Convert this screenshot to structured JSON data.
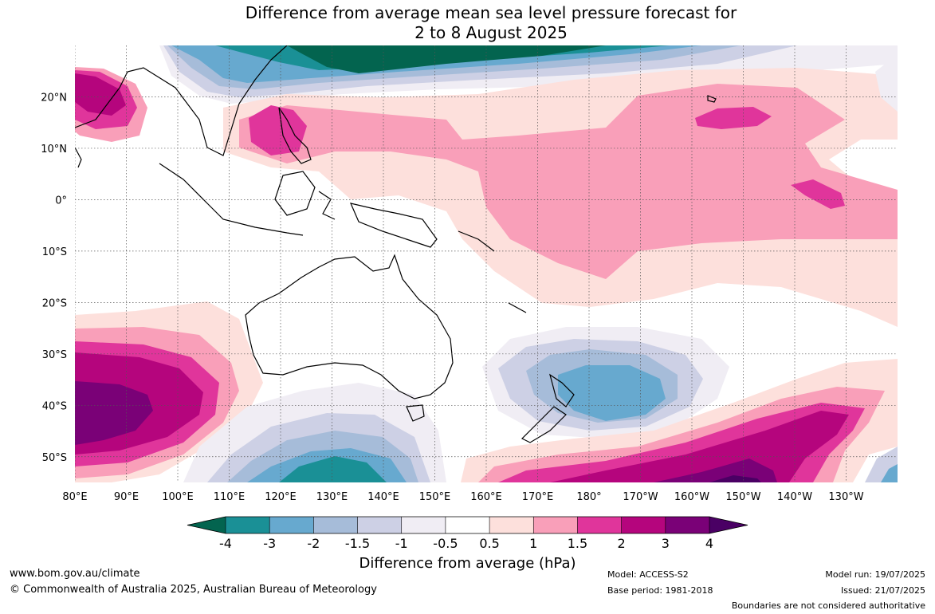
{
  "title": {
    "line1": "Difference from average mean sea level pressure forecast for",
    "line2": "2 to 8 August 2025"
  },
  "map": {
    "lon_labels": [
      "80°E",
      "90°E",
      "100°E",
      "110°E",
      "120°E",
      "130°E",
      "140°E",
      "150°E",
      "160°E",
      "170°E",
      "180°",
      "170°W",
      "160°W",
      "150°W",
      "140°W",
      "130°W"
    ],
    "lat_labels": [
      "20°N",
      "10°N",
      "0°",
      "10°S",
      "20°S",
      "30°S",
      "40°S",
      "50°S"
    ],
    "lat_values": [
      20,
      10,
      0,
      -10,
      -20,
      -30,
      -40,
      -50
    ],
    "lon_values": [
      80,
      90,
      100,
      110,
      120,
      130,
      140,
      150,
      160,
      170,
      180,
      190,
      200,
      210,
      220,
      230
    ],
    "extent": {
      "lon": [
        80,
        240
      ],
      "lat": [
        -55,
        30
      ]
    }
  },
  "colorbar": {
    "title": "Difference from average (hPa)",
    "tick_labels": [
      "-4",
      "-3",
      "-2",
      "-1.5",
      "-1",
      "-0.5",
      "0.5",
      "1",
      "1.5",
      "2",
      "3",
      "4"
    ],
    "colors": {
      "below_-4": "#03644f",
      "-4_-3": "#1a9096",
      "-3_-2": "#67a9cf",
      "-2_-1.5": "#a6bcd9",
      "-1.5_-1": "#cdd0e5",
      "-1_-0.5": "#f0edf4",
      "-0.5_0.5": "#ffffff",
      "0.5_1": "#fde0dc",
      "1_1.5": "#f99fb9",
      "1.5_2": "#e0359b",
      "2_3": "#b5057d",
      "3_4": "#7a0177",
      "above_4": "#4a0064"
    }
  },
  "footer": {
    "website": "www.bom.gov.au/climate",
    "copyright": "© Commonwealth of Australia 2025, Australian Bureau of Meteorology",
    "model": "Model: ACCESS-S2",
    "base_period": "Base period: 1981-2018",
    "model_run": "Model run: 19/07/2025",
    "issued": "Issued: 21/07/2025",
    "boundaries": "Boundaries are not considered authoritative"
  }
}
